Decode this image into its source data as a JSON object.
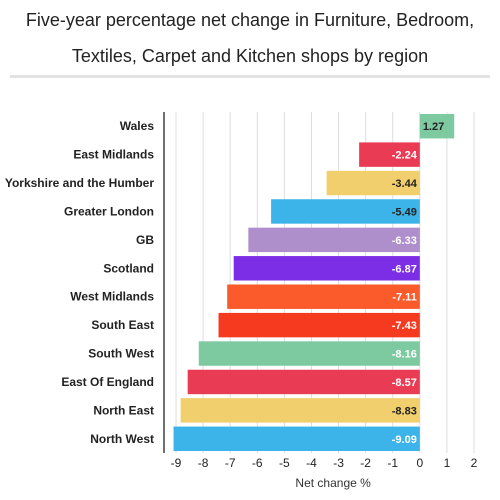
{
  "chart_data": {
    "type": "bar",
    "orientation": "horizontal",
    "title": "Five-year percentage net change in Furniture, Bedroom, Textiles, Carpet and Kitchen shops by region",
    "xlabel": "Net change %",
    "ylabel": "",
    "xlim": [
      -9,
      2
    ],
    "xticks": [
      "-9",
      "-8",
      "-7",
      "-6",
      "-5",
      "-4",
      "-3",
      "-2",
      "-1",
      "0",
      "1",
      "2"
    ],
    "grid": true,
    "categories": [
      "Wales",
      "East Midlands",
      "Yorkshire and the Humber",
      "Greater London",
      "GB",
      "Scotland",
      "West Midlands",
      "South East",
      "South West",
      "East Of England",
      "North East",
      "North West"
    ],
    "values": [
      1.27,
      -2.24,
      -3.44,
      -5.49,
      -6.33,
      -6.87,
      -7.11,
      -7.43,
      -8.16,
      -8.57,
      -8.83,
      -9.09
    ],
    "labels": [
      "1.27",
      "-2.24",
      "-3.44",
      "-5.49",
      "-6.33",
      "-6.87",
      "-7.11",
      "-7.43",
      "-8.16",
      "-8.57",
      "-8.83",
      "-9.09"
    ],
    "colors": [
      "#7ecaa0",
      "#ea3b55",
      "#f1cf6c",
      "#3cb4ea",
      "#ae8ecb",
      "#7c2ee6",
      "#fb5b2b",
      "#f53a1f",
      "#7ecaa0",
      "#ea3b55",
      "#f1cf6c",
      "#3cb4ea"
    ],
    "label_colors": [
      "#222222",
      "#ffffff",
      "#222222",
      "#222222",
      "#ffffff",
      "#ffffff",
      "#ffffff",
      "#ffffff",
      "#ffffff",
      "#ffffff",
      "#222222",
      "#ffffff"
    ]
  }
}
